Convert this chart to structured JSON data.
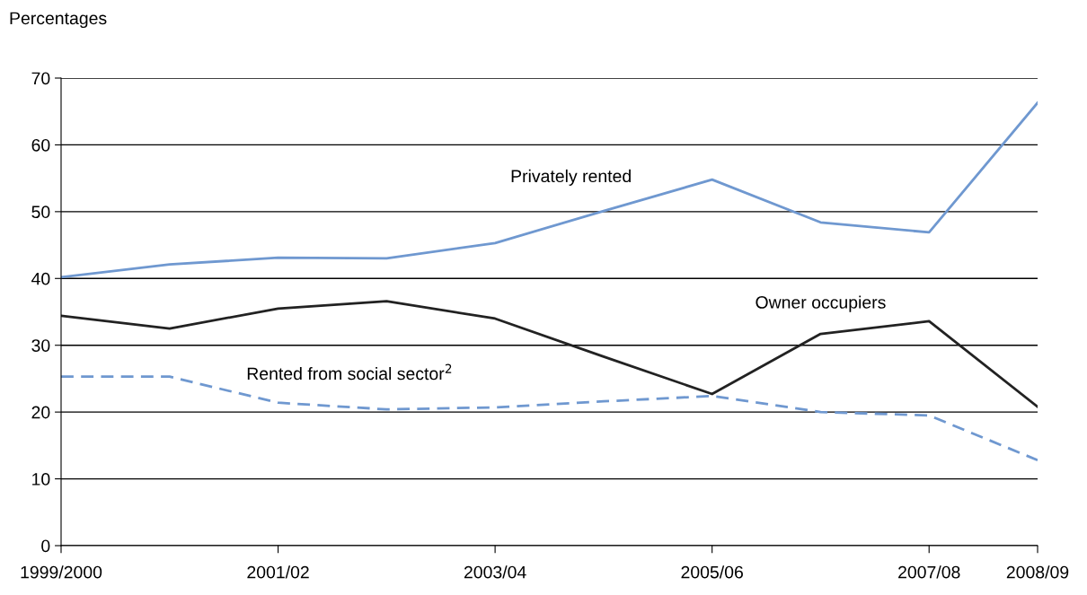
{
  "chart_data": {
    "type": "line",
    "ylabel": "Percentages",
    "categories": [
      "1999/2000",
      null,
      "2001/02",
      null,
      "2003/04",
      null,
      "2005/06",
      null,
      "2007/08",
      "2008/09"
    ],
    "series": [
      {
        "name": "Privately rented",
        "color": "#6f98d0",
        "line_style": "solid",
        "values": [
          40.2,
          42.1,
          43.1,
          43.0,
          45.3,
          50.1,
          54.8,
          48.4,
          46.9,
          66.3
        ]
      },
      {
        "name": "Owner occupiers",
        "color": "#222222",
        "line_style": "solid",
        "values": [
          34.4,
          32.5,
          35.5,
          36.6,
          34.0,
          28.3,
          22.7,
          31.7,
          33.6,
          20.8
        ]
      },
      {
        "name": "Rented from social sector$^{2}$",
        "color": "#6f98d0",
        "line_style": "dashed",
        "values": [
          25.3,
          25.3,
          21.4,
          20.4,
          20.7,
          21.6,
          22.4,
          20.0,
          19.5,
          12.8
        ]
      }
    ],
    "ylim": [
      0,
      70
    ],
    "yticks": [
      0,
      10,
      20,
      30,
      40,
      50,
      60,
      70
    ],
    "grid": "y",
    "legend": false,
    "marker": "none"
  }
}
